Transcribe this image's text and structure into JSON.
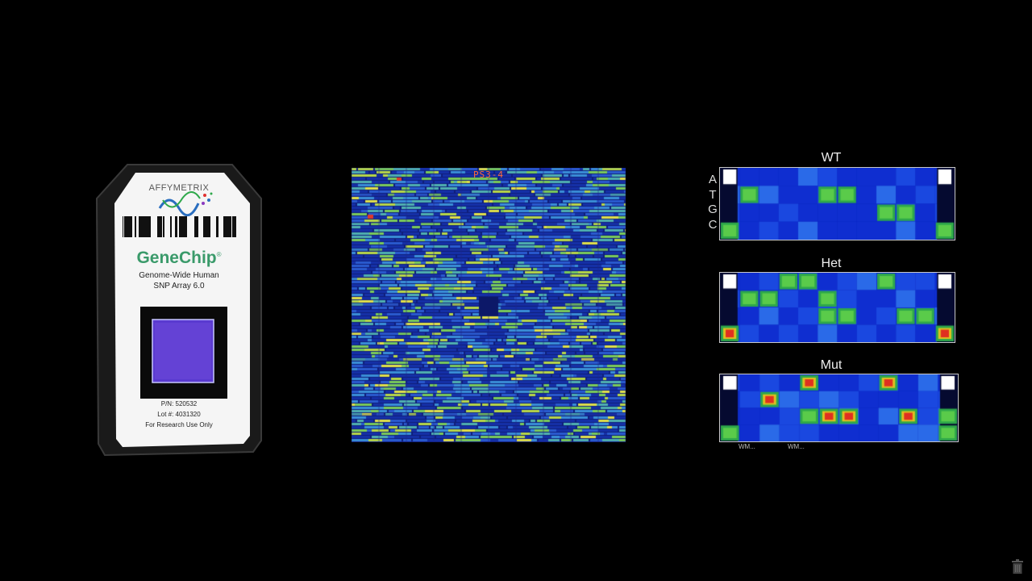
{
  "cartridge": {
    "brand": "AFFYMETRIX",
    "product": "GeneChip",
    "product_mark": "®",
    "description_line1": "Genome-Wide Human",
    "description_line2": "SNP Array 6.0",
    "part_number": "P/N: 520532",
    "lot_number": "Lot #: 4031320",
    "usage_note": "For Research Use Only"
  },
  "array_image": {
    "label": "PS3-4"
  },
  "probe_panels": [
    {
      "title": "WT"
    },
    {
      "title": "Het"
    },
    {
      "title": "Mut"
    }
  ],
  "bases": [
    "A",
    "T",
    "G",
    "C"
  ],
  "footnotes": [
    "WM...",
    "WM..."
  ],
  "colors": {
    "background": "#000000",
    "array_base": "#0f1e7a",
    "high_signal": "#3fbf4f",
    "saturation": "#ffffff",
    "brand_green": "#3a9a6a"
  },
  "icons": {
    "corner": "trash-icon"
  }
}
